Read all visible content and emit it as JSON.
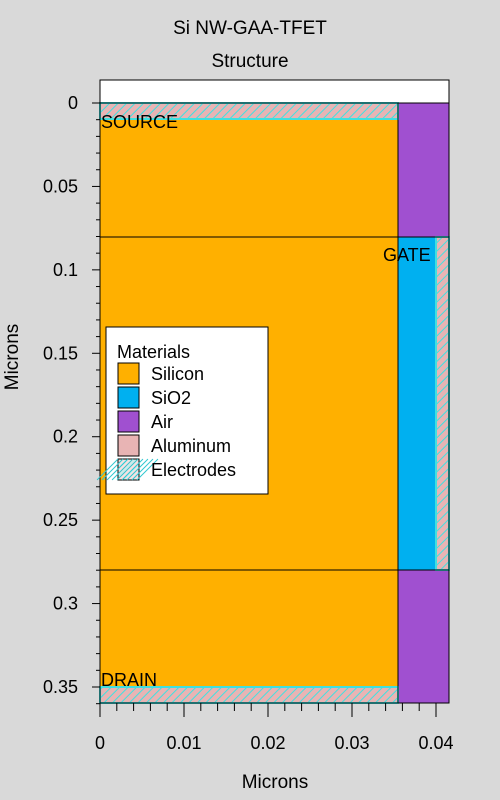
{
  "header": {
    "title": "Si NW-GAA-TFET",
    "subtitle": "Structure"
  },
  "axes": {
    "xlabel": "Microns",
    "ylabel": "Microns",
    "x_ticks": [
      "0",
      "0.01",
      "0.02",
      "0.03",
      "0.04"
    ],
    "y_ticks": [
      "0",
      "0.05",
      "0.1",
      "0.15",
      "0.2",
      "0.25",
      "0.3",
      "0.35"
    ]
  },
  "regions": {
    "source_label": "SOURCE",
    "gate_label": "GATE",
    "drain_label": "DRAIN"
  },
  "legend": {
    "title": "Materials",
    "items": [
      {
        "label": "Silicon",
        "color": "#ffb000"
      },
      {
        "label": "SiO2",
        "color": "#00b0f0"
      },
      {
        "label": "Air",
        "color": "#a050d0"
      },
      {
        "label": "Aluminum",
        "color": "#e8b4b4"
      },
      {
        "label": "Electrodes",
        "color": "#7ff0f0"
      }
    ]
  },
  "colors": {
    "background": "#d9d9d9",
    "silicon": "#ffb000",
    "oxide": "#00b0f0",
    "air": "#a050d0",
    "aluminum": "#e8b4b4",
    "electrode": "#40e0e0"
  }
}
